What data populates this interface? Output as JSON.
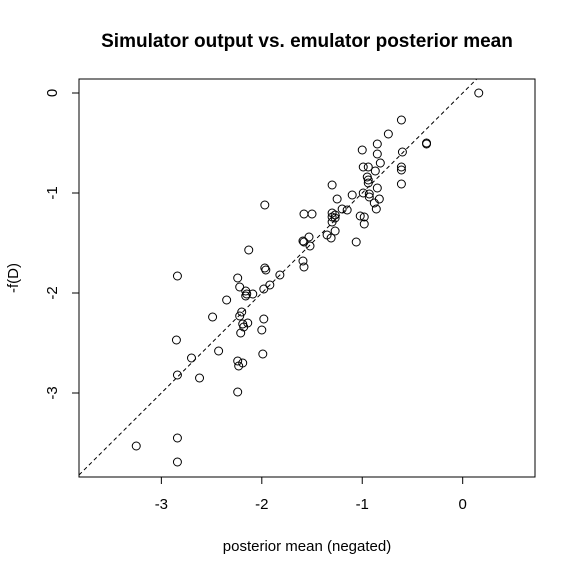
{
  "chart_data": {
    "type": "scatter",
    "title": "Simulator output vs. emulator posterior mean",
    "xlabel": "posterior mean (negated)",
    "ylabel": "-f(D)",
    "xlim": [
      -3.82,
      0.72
    ],
    "ylim": [
      -3.84,
      0.14
    ],
    "xticks": [
      -3,
      -2,
      -1,
      0
    ],
    "yticks": [
      -3,
      -2,
      -1,
      0
    ],
    "xtick_labels": [
      "-3",
      "-2",
      "-1",
      "0"
    ],
    "ytick_labels": [
      "-3",
      "-2",
      "-1",
      "0"
    ],
    "reference_line": {
      "slope": 1,
      "intercept": 0,
      "style": "dashed"
    },
    "grid": false,
    "colors": {
      "points": "#000000",
      "line": "#000000",
      "background": "#ffffff"
    },
    "points": [
      [
        0.16,
        0.0
      ],
      [
        -0.61,
        -0.27
      ],
      [
        -0.74,
        -0.41
      ],
      [
        -0.85,
        -0.51
      ],
      [
        -0.36,
        -0.5
      ],
      [
        -0.36,
        -0.51
      ],
      [
        -1.0,
        -0.57
      ],
      [
        -0.85,
        -0.61
      ],
      [
        -0.6,
        -0.59
      ],
      [
        -0.82,
        -0.7
      ],
      [
        -0.94,
        -0.74
      ],
      [
        -0.99,
        -0.74
      ],
      [
        -0.61,
        -0.74
      ],
      [
        -0.61,
        -0.77
      ],
      [
        -0.87,
        -0.78
      ],
      [
        -0.95,
        -0.84
      ],
      [
        -0.94,
        -0.87
      ],
      [
        -0.94,
        -0.9
      ],
      [
        -1.3,
        -0.92
      ],
      [
        -0.61,
        -0.91
      ],
      [
        -0.85,
        -0.95
      ],
      [
        -0.93,
        -1.01
      ],
      [
        -0.99,
        -1.0
      ],
      [
        -1.1,
        -1.02
      ],
      [
        -0.93,
        -1.04
      ],
      [
        -1.25,
        -1.06
      ],
      [
        -0.83,
        -1.06
      ],
      [
        -0.88,
        -1.1
      ],
      [
        -1.97,
        -1.12
      ],
      [
        -0.86,
        -1.16
      ],
      [
        -1.15,
        -1.17
      ],
      [
        -1.2,
        -1.16
      ],
      [
        -1.58,
        -1.21
      ],
      [
        -1.5,
        -1.21
      ],
      [
        -1.3,
        -1.2
      ],
      [
        -1.27,
        -1.22
      ],
      [
        -1.3,
        -1.24
      ],
      [
        -1.27,
        -1.25
      ],
      [
        -1.02,
        -1.23
      ],
      [
        -0.98,
        -1.24
      ],
      [
        -1.3,
        -1.29
      ],
      [
        -0.98,
        -1.31
      ],
      [
        -1.27,
        -1.38
      ],
      [
        -1.35,
        -1.42
      ],
      [
        -1.31,
        -1.45
      ],
      [
        -1.53,
        -1.44
      ],
      [
        -1.59,
        -1.48
      ],
      [
        -1.58,
        -1.49
      ],
      [
        -1.06,
        -1.49
      ],
      [
        -1.52,
        -1.53
      ],
      [
        -2.13,
        -1.57
      ],
      [
        -1.59,
        -1.68
      ],
      [
        -1.97,
        -1.75
      ],
      [
        -1.96,
        -1.77
      ],
      [
        -1.58,
        -1.74
      ],
      [
        -1.82,
        -1.82
      ],
      [
        -2.84,
        -1.83
      ],
      [
        -2.24,
        -1.85
      ],
      [
        -1.92,
        -1.92
      ],
      [
        -2.22,
        -1.94
      ],
      [
        -1.98,
        -1.96
      ],
      [
        -2.16,
        -1.98
      ],
      [
        -2.15,
        -2.01
      ],
      [
        -2.16,
        -2.03
      ],
      [
        -2.09,
        -2.01
      ],
      [
        -2.35,
        -2.07
      ],
      [
        -2.2,
        -2.19
      ],
      [
        -2.22,
        -2.23
      ],
      [
        -2.49,
        -2.24
      ],
      [
        -1.98,
        -2.26
      ],
      [
        -2.14,
        -2.3
      ],
      [
        -2.19,
        -2.31
      ],
      [
        -2.18,
        -2.34
      ],
      [
        -2.0,
        -2.37
      ],
      [
        -2.21,
        -2.4
      ],
      [
        -2.85,
        -2.47
      ],
      [
        -2.43,
        -2.58
      ],
      [
        -1.99,
        -2.61
      ],
      [
        -2.7,
        -2.65
      ],
      [
        -2.24,
        -2.68
      ],
      [
        -2.19,
        -2.7
      ],
      [
        -2.23,
        -2.73
      ],
      [
        -2.84,
        -2.82
      ],
      [
        -2.62,
        -2.85
      ],
      [
        -2.24,
        -2.99
      ],
      [
        -2.84,
        -3.45
      ],
      [
        -3.25,
        -3.53
      ],
      [
        -2.84,
        -3.69
      ]
    ]
  }
}
